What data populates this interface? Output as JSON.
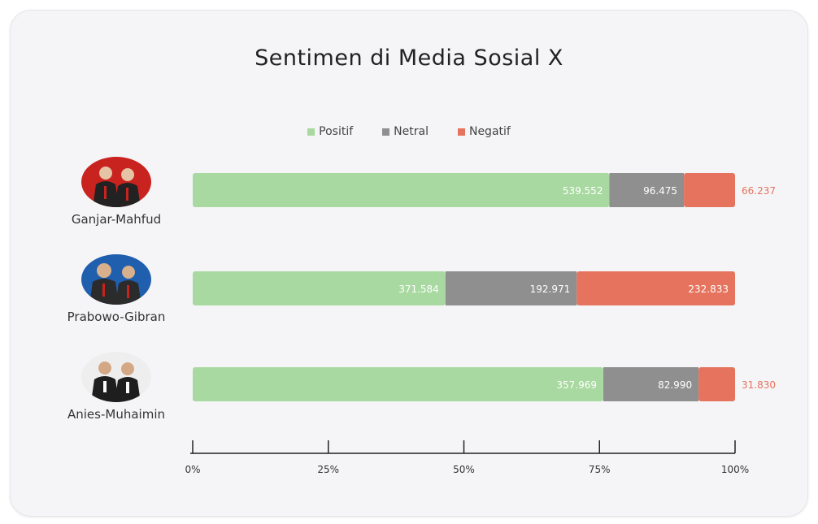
{
  "chart_data": {
    "type": "bar",
    "orientation": "horizontal",
    "stacked": "percent",
    "title": "Sentimen di Media Sosial X",
    "categories": [
      "Ganjar-Mahfud",
      "Prabowo-Gibran",
      "Anies-Muhaimin"
    ],
    "series": [
      {
        "name": "Positif",
        "color": "#a8d9a0",
        "values": [
          539552,
          371584,
          357969
        ],
        "labels": [
          "539.552",
          "371.584",
          "357.969"
        ]
      },
      {
        "name": "Netral",
        "color": "#8f8f8f",
        "values": [
          96475,
          192971,
          82990
        ],
        "labels": [
          "96.475",
          "192.971",
          "82.990"
        ]
      },
      {
        "name": "Negatif",
        "color": "#e5735e",
        "values": [
          66237,
          232833,
          31830
        ],
        "labels": [
          "66.237",
          "232.833",
          "31.830"
        ]
      }
    ],
    "xaxis": {
      "ticks": [
        "0%",
        "25%",
        "50%",
        "75%",
        "100%"
      ],
      "range": [
        0,
        100
      ]
    },
    "legend_position": "top",
    "grid": false
  },
  "candidate_photos": [
    "red-background-pair-photo",
    "blue-background-pair-photo",
    "white-background-pair-photo"
  ]
}
